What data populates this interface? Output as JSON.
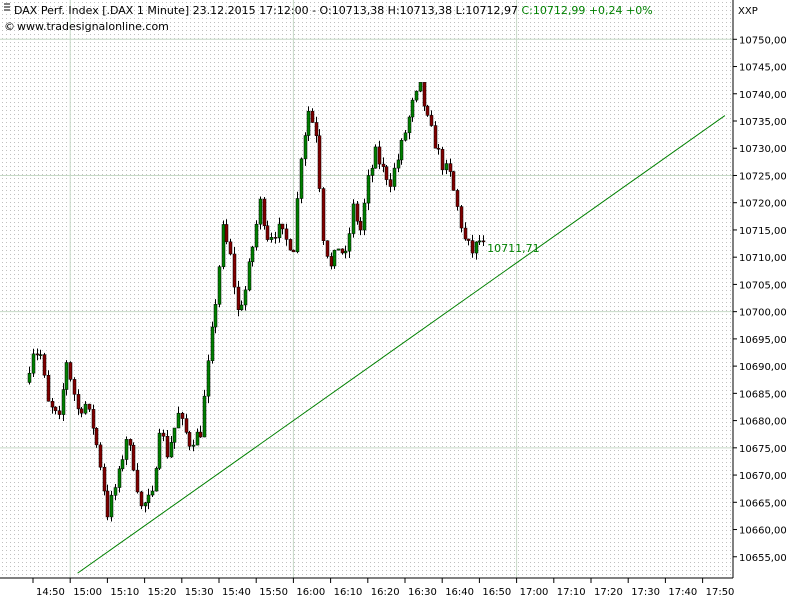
{
  "header": {
    "instrument": "DAX Perf. Index [.DAX  1 Minute] 23.12.2015 17:12:00 - ",
    "ohlc": "O:10713,38 H:10713,38 L:10712,97 ",
    "close": "C:10712,99 +0,24 +0%",
    "source": "www.tradesignalonline.com"
  },
  "axis_unit": "XXP",
  "colors": {
    "up": "#008000",
    "down": "#800000",
    "trendline": "#008000",
    "grid_major": "#c6d9c6",
    "grid_dots": "#c0c0c0",
    "axis": "#000000"
  },
  "chart_data": {
    "type": "candlestick",
    "interval": "1 Minute",
    "date": "23.12.2015",
    "ylim": [
      10650,
      10754
    ],
    "y_ticks": [
      "10655,00",
      "10660,00",
      "10665,00",
      "10670,00",
      "10675,00",
      "10680,00",
      "10685,00",
      "10690,00",
      "10695,00",
      "10700,00",
      "10705,00",
      "10710,00",
      "10715,00",
      "10720,00",
      "10725,00",
      "10730,00",
      "10735,00",
      "10740,00",
      "10745,00",
      "10750,00"
    ],
    "x_ticks": [
      "14:50",
      "15:00",
      "15:10",
      "15:20",
      "15:30",
      "15:40",
      "15:50",
      "16:00",
      "16:10",
      "16:20",
      "16:30",
      "16:40",
      "16:50",
      "17:00",
      "17:10",
      "17:20",
      "17:30",
      "17:40",
      "17:50"
    ],
    "trendline": {
      "start": [
        "15:02",
        10652
      ],
      "end": [
        "17:56",
        10736
      ]
    },
    "trendline_label": "10711,71",
    "price_path": [
      [
        "14:49",
        10687
      ],
      [
        "14:51",
        10693
      ],
      [
        "14:53",
        10692
      ],
      [
        "14:55",
        10683
      ],
      [
        "14:58",
        10680
      ],
      [
        "15:00",
        10691
      ],
      [
        "15:03",
        10682
      ],
      [
        "15:05",
        10683
      ],
      [
        "15:07",
        10679
      ],
      [
        "15:09",
        10672
      ],
      [
        "15:11",
        10663
      ],
      [
        "15:14",
        10670
      ],
      [
        "15:16",
        10677
      ],
      [
        "15:18",
        10672
      ],
      [
        "15:20",
        10664
      ],
      [
        "15:23",
        10666
      ],
      [
        "15:25",
        10679
      ],
      [
        "15:27",
        10674
      ],
      [
        "15:30",
        10681
      ],
      [
        "15:33",
        10676
      ],
      [
        "15:36",
        10678
      ],
      [
        "15:38",
        10690
      ],
      [
        "15:40",
        10702
      ],
      [
        "15:42",
        10715
      ],
      [
        "15:44",
        10710
      ],
      [
        "15:46",
        10700
      ],
      [
        "15:48",
        10704
      ],
      [
        "15:50",
        10712
      ],
      [
        "15:52",
        10720
      ],
      [
        "15:54",
        10714
      ],
      [
        "15:57",
        10715
      ],
      [
        "15:59",
        10713
      ],
      [
        "16:01",
        10712
      ],
      [
        "16:03",
        10729
      ],
      [
        "16:05",
        10737
      ],
      [
        "16:07",
        10733
      ],
      [
        "16:09",
        10714
      ],
      [
        "16:11",
        10708
      ],
      [
        "16:13",
        10712
      ],
      [
        "16:15",
        10710
      ],
      [
        "16:17",
        10719
      ],
      [
        "16:19",
        10715
      ],
      [
        "16:21",
        10724
      ],
      [
        "16:23",
        10729
      ],
      [
        "16:25",
        10726
      ],
      [
        "16:27",
        10724
      ],
      [
        "16:29",
        10728
      ],
      [
        "16:31",
        10733
      ],
      [
        "16:33",
        10738
      ],
      [
        "16:35",
        10741
      ],
      [
        "16:37",
        10735
      ],
      [
        "16:39",
        10731
      ],
      [
        "16:41",
        10727
      ],
      [
        "16:43",
        10725
      ],
      [
        "16:45",
        10719
      ],
      [
        "16:47",
        10713
      ],
      [
        "16:49",
        10711
      ],
      [
        "16:51",
        10713
      ]
    ]
  }
}
